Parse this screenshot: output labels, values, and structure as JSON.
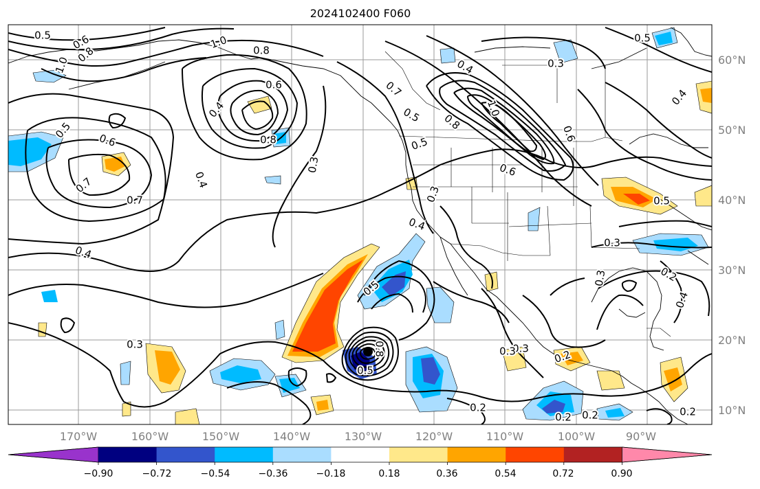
{
  "title": "2024102400 F060",
  "map": {
    "lat_labels": [
      "60°N",
      "50°N",
      "40°N",
      "30°N",
      "20°N",
      "10°N"
    ],
    "lon_labels": [
      "170°W",
      "160°W",
      "150°W",
      "140°W",
      "130°W",
      "120°W",
      "110°W",
      "100°W",
      "90°W"
    ],
    "contour_labels": [
      "0.5",
      "0.6",
      "0.8",
      "1.0",
      "1.0",
      "0.8",
      "0.6",
      "0.4",
      "0.8",
      "0.5",
      "0.6",
      "0.7",
      "0.7",
      "0.4",
      "0.4",
      "0.3",
      "0.3",
      "0.2",
      "0.3",
      "0.2",
      "0.2",
      "0.5",
      "0.4",
      "0.3",
      "0.7",
      "0.5",
      "0.4",
      "1.0",
      "0.8",
      "0.6",
      "0.3",
      "0.5",
      "0.3",
      "0.5",
      "0.2",
      "0.3",
      "0.4",
      "0.5",
      "0.2",
      "0.2",
      "0.3",
      "0.4",
      "0.6",
      "0.8",
      "0.5"
    ]
  },
  "colorbar": {
    "colors": [
      "#9933cc",
      "#000080",
      "#3355cc",
      "#00bbff",
      "#aaddff",
      "#ffffff",
      "#ffe88a",
      "#ffa500",
      "#ff4500",
      "#b22222",
      "#ff88aa"
    ],
    "tick_labels": [
      "−0.90",
      "−0.72",
      "−0.54",
      "−0.36",
      "−0.18",
      "0.18",
      "0.36",
      "0.54",
      "0.72",
      "0.90"
    ]
  }
}
